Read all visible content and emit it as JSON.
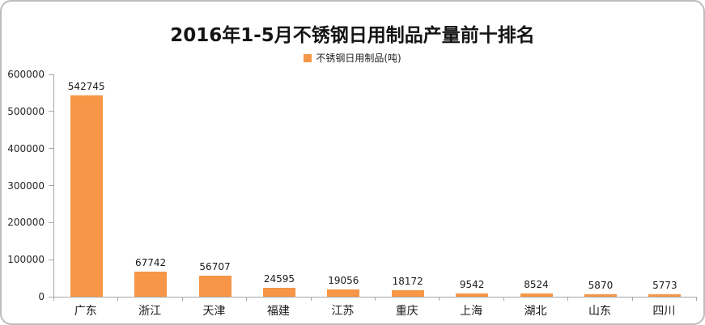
{
  "chart_data": {
    "type": "bar",
    "title": "2016年1-5月不锈钢日用制品产量前十排名",
    "legend_entries": [
      "不锈钢日用制品(吨)"
    ],
    "categories": [
      "广东",
      "浙江",
      "天津",
      "福建",
      "江苏",
      "重庆",
      "上海",
      "湖北",
      "山东",
      "四川"
    ],
    "values": [
      542745,
      67742,
      56707,
      24595,
      19056,
      18172,
      9542,
      8524,
      5870,
      5773
    ],
    "data_labels": [
      542745,
      67742,
      56707,
      24595,
      19056,
      18172,
      9542,
      8524,
      5870,
      5773
    ],
    "xlabel": "",
    "ylabel": "",
    "ylim": [
      0,
      600000
    ],
    "y_ticks": [
      0,
      100000,
      200000,
      300000,
      400000,
      500000,
      600000
    ],
    "grid": false,
    "legend_position": "top-center",
    "bar_color": "#F79646",
    "axis_color": "#A6A6A6",
    "frame_border_color": "#BDBDBD",
    "text_color": "#1A1A1A"
  }
}
